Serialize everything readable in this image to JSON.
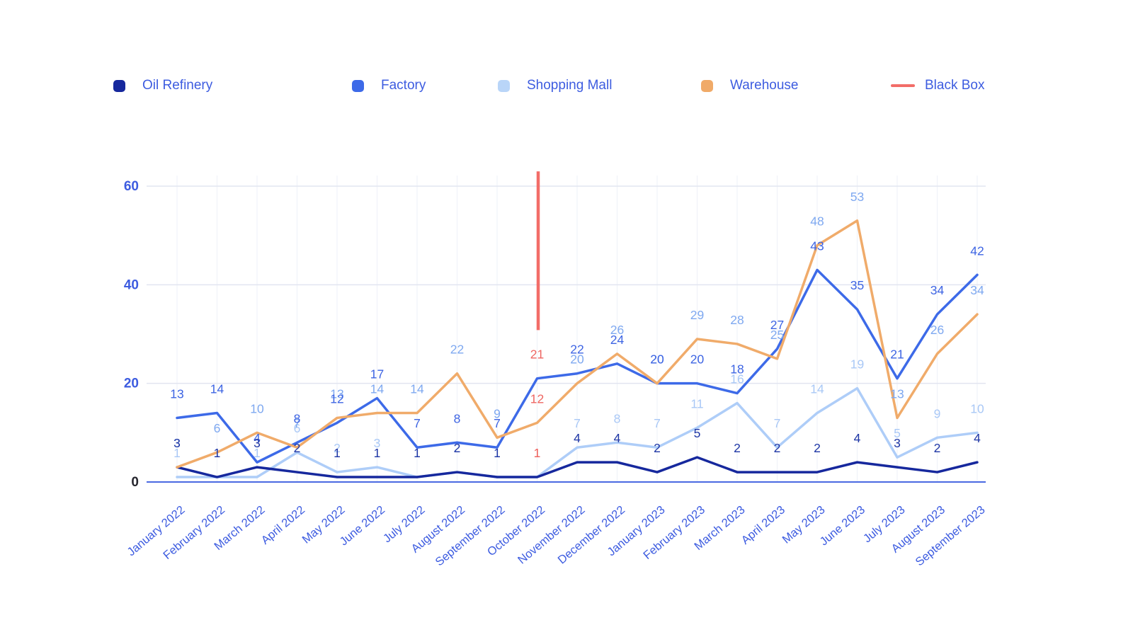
{
  "legend": {
    "items": [
      {
        "label": "Oil Refinery",
        "color": "#16289d",
        "marker": "box"
      },
      {
        "label": "Factory",
        "color": "#3d6ae8",
        "marker": "box"
      },
      {
        "label": "Shopping Mall",
        "color": "#b9d5f8",
        "marker": "box"
      },
      {
        "label": "Warehouse",
        "color": "#f0aa68",
        "marker": "box"
      },
      {
        "label": "Black Box",
        "color": "#f26d68",
        "marker": "line"
      }
    ]
  },
  "axes": {
    "y_tick_labels": [
      "0",
      "20",
      "40",
      "60"
    ],
    "tick_color": "#3d5ce0",
    "zero_tick_color": "#26262e",
    "month_label_color": "#3d5ce0"
  },
  "chart_data": {
    "type": "line",
    "title": "",
    "xlabel": "",
    "ylabel": "",
    "ylim": [
      0,
      63
    ],
    "y_ticks": [
      0,
      20,
      40,
      60
    ],
    "grid": {
      "horizontal": true,
      "vertical": true
    },
    "legend_position": "top",
    "categories": [
      "January 2022",
      "February 2022",
      "March 2022",
      "April 2022",
      "May 2022",
      "June 2022",
      "July 2022",
      "August 2022",
      "September 2022",
      "October 2022",
      "November 2022",
      "December 2022",
      "January 2023",
      "February 2023",
      "March 2023",
      "April 2023",
      "May 2023",
      "June 2023",
      "July 2023",
      "August 2023",
      "September 2023"
    ],
    "series": [
      {
        "name": "Oil Refinery",
        "color": "#16289d",
        "label_color": "#1e36a5",
        "values": [
          3,
          1,
          3,
          2,
          1,
          1,
          1,
          2,
          1,
          1,
          4,
          4,
          2,
          5,
          2,
          2,
          2,
          4,
          3,
          2,
          4
        ]
      },
      {
        "name": "Factory",
        "color": "#3d6ae8",
        "label_color": "#3d64e3",
        "values": [
          13,
          14,
          4,
          8,
          12,
          17,
          7,
          8,
          7,
          21,
          22,
          24,
          20,
          20,
          18,
          27,
          43,
          35,
          21,
          34,
          42
        ]
      },
      {
        "name": "Shopping Mall",
        "color": "#aecdf8",
        "label_color": "#a9c8f6",
        "values": [
          1,
          1,
          1,
          6,
          2,
          3,
          1,
          2,
          1,
          1,
          7,
          8,
          7,
          11,
          16,
          7,
          14,
          19,
          5,
          9,
          10
        ]
      },
      {
        "name": "Warehouse",
        "color": "#f0ab6a",
        "label_color": "#7ea8f0",
        "values": [
          3,
          6,
          10,
          7,
          13,
          14,
          14,
          22,
          9,
          12,
          20,
          26,
          20,
          29,
          28,
          25,
          48,
          53,
          13,
          26,
          34
        ]
      }
    ],
    "annotation": {
      "name": "Black Box",
      "type": "vertical-line",
      "category": "October 2022",
      "color": "#f26d68",
      "y_from": 30.8,
      "y_to": 63,
      "highlight_label_color": "#ee6662",
      "highlighted_values": [
        21,
        12,
        1
      ]
    }
  }
}
